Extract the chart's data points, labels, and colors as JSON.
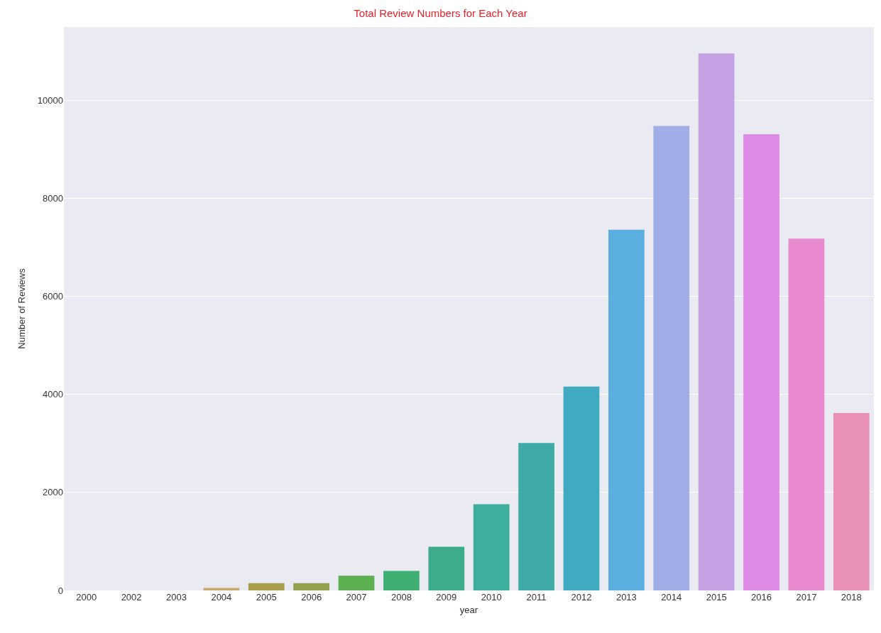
{
  "chart_data": {
    "type": "bar",
    "title": "Total Review Numbers for Each Year",
    "xlabel": "year",
    "ylabel": "Number of Reviews",
    "categories": [
      "2000",
      "2002",
      "2003",
      "2004",
      "2005",
      "2006",
      "2007",
      "2008",
      "2009",
      "2010",
      "2011",
      "2012",
      "2013",
      "2014",
      "2015",
      "2016",
      "2017",
      "2018"
    ],
    "values": [
      0,
      0,
      0,
      50,
      150,
      150,
      300,
      400,
      890,
      1760,
      3010,
      4160,
      7360,
      9480,
      10960,
      9310,
      7180,
      3620
    ],
    "colors": [
      "#ef8a9a",
      "#e69a6a",
      "#d2a35a",
      "#c9a86a",
      "#a89d4a",
      "#95a04e",
      "#5db050",
      "#3fae73",
      "#3cac8c",
      "#3daf9d",
      "#3eaba6",
      "#3faac0",
      "#5aaee0",
      "#a1ade6",
      "#c4a2e3",
      "#de8ae4",
      "#e989d0",
      "#e990b6"
    ],
    "ylim": [
      0,
      11500
    ],
    "yticks": [
      0,
      2000,
      4000,
      6000,
      8000,
      10000
    ],
    "grid": "y"
  }
}
